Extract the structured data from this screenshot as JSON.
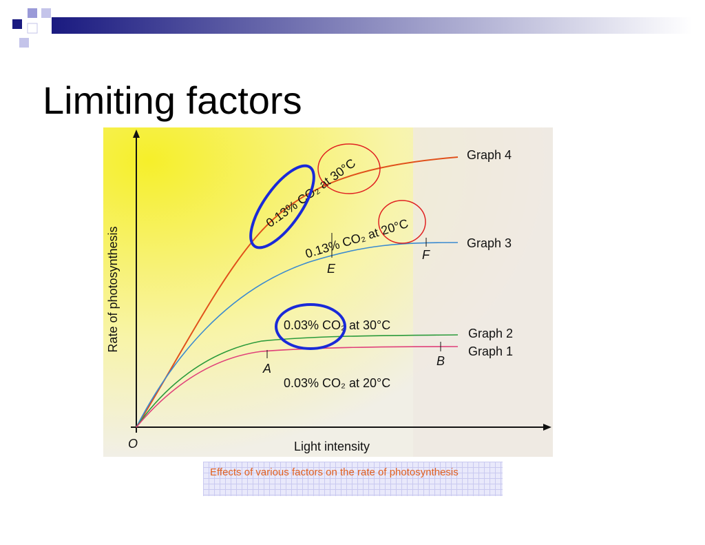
{
  "slide": {
    "title": "Limiting factors",
    "figure": {
      "y_axis_label": "Rate of photosynthesis",
      "x_axis_label": "Light intensity",
      "origin": "O",
      "curves": [
        {
          "name": "Graph 4",
          "condition": "0.13% CO₂ at 30°C"
        },
        {
          "name": "Graph 3",
          "condition": "0.13% CO₂ at 20°C"
        },
        {
          "name": "Graph 2",
          "condition": "0.03% CO₂ at 30°C"
        },
        {
          "name": "Graph 1",
          "condition": "0.03% CO₂ at 20°C"
        }
      ],
      "points": [
        "A",
        "B",
        "E",
        "F"
      ]
    },
    "caption": "Effects of various factors on the rate of photosynthesis"
  }
}
